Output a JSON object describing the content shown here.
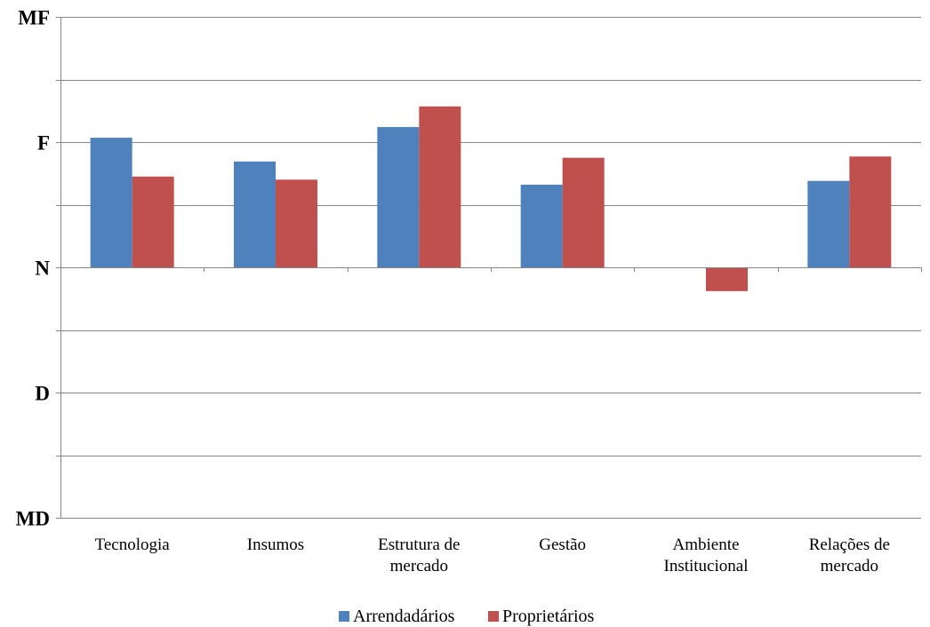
{
  "chart_data": {
    "type": "bar",
    "categories": [
      [
        "Tecnologia"
      ],
      [
        "Insumos"
      ],
      [
        "Estrutura de",
        "mercado"
      ],
      [
        "Gestão"
      ],
      [
        "Ambiente",
        "Institucional"
      ],
      [
        "Relações de",
        "mercado"
      ]
    ],
    "series": [
      {
        "name": "Arrendadários",
        "color": "#4F81BD",
        "values": [
          2.07,
          1.69,
          2.24,
          1.32,
          0.0,
          1.38
        ]
      },
      {
        "name": "Proprietários",
        "color": "#C0504D",
        "values": [
          1.45,
          1.4,
          2.57,
          1.75,
          -0.38,
          1.77
        ]
      }
    ],
    "ylim": [
      -4,
      4
    ],
    "yticks": [
      {
        "value": 4,
        "label": "MF"
      },
      {
        "value": 3,
        "label": ""
      },
      {
        "value": 2,
        "label": "F"
      },
      {
        "value": 1,
        "label": ""
      },
      {
        "value": 0,
        "label": "N"
      },
      {
        "value": -1,
        "label": ""
      },
      {
        "value": -2,
        "label": "D"
      },
      {
        "value": -3,
        "label": ""
      },
      {
        "value": -4,
        "label": "MD"
      }
    ],
    "grid": true,
    "legend": "bottom"
  }
}
